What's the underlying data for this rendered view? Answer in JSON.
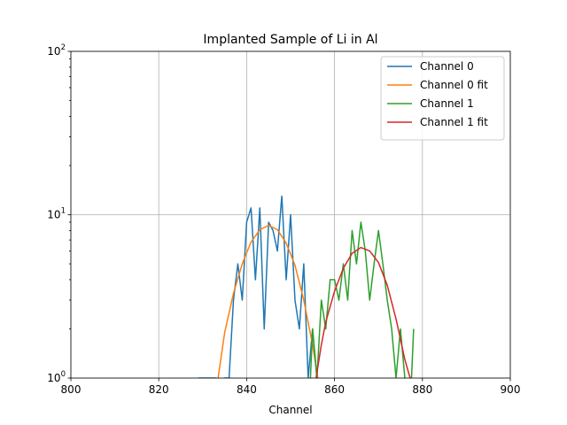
{
  "chart_data": {
    "type": "line",
    "title": "Implanted Sample of Li in Al",
    "xlabel": "Channel",
    "ylabel": "",
    "xlim": [
      800,
      900
    ],
    "ylim": [
      1,
      100
    ],
    "yscale": "log",
    "grid": true,
    "legend_position": "top-right",
    "x_ticks": [
      "800",
      "820",
      "840",
      "860",
      "880",
      "900"
    ],
    "y_ticks": [
      {
        "base": "10",
        "exp": "0",
        "value": 1
      },
      {
        "base": "10",
        "exp": "1",
        "value": 10
      },
      {
        "base": "10",
        "exp": "2",
        "value": 100
      }
    ],
    "series": [
      {
        "name": "Channel 0",
        "color": "#1f77b4",
        "x": [
          829,
          831,
          833,
          834,
          835,
          836,
          837,
          838,
          839,
          840,
          841,
          842,
          843,
          844,
          845,
          846,
          847,
          848,
          849,
          850,
          851,
          852,
          853,
          854,
          855,
          856,
          857
        ],
        "y": [
          1,
          1,
          1,
          0,
          1,
          1,
          3,
          5,
          3,
          9,
          11,
          4,
          11,
          2,
          9,
          8,
          6,
          13,
          4,
          10,
          3,
          2,
          5,
          1,
          2,
          1,
          0
        ]
      },
      {
        "name": "Channel 0 fit",
        "color": "#ff7f0e",
        "x": [
          833.5,
          835,
          837,
          839,
          841,
          843,
          845,
          847,
          849,
          851,
          853,
          855,
          856.2
        ],
        "y": [
          1,
          1.9,
          3.3,
          5.0,
          6.8,
          8.1,
          8.6,
          8.1,
          6.7,
          4.9,
          3.0,
          1.6,
          1
        ]
      },
      {
        "name": "Channel 1",
        "color": "#2ca02c",
        "x": [
          854,
          855,
          856,
          857,
          858,
          859,
          860,
          861,
          862,
          863,
          864,
          865,
          866,
          867,
          868,
          869,
          870,
          871,
          872,
          873,
          874,
          875,
          876,
          877,
          878
        ],
        "y": [
          0,
          2,
          1,
          3,
          2,
          4,
          4,
          3,
          5,
          3,
          8,
          5,
          9,
          6,
          3,
          5,
          8,
          5,
          3,
          2,
          1,
          2,
          1,
          0,
          2
        ]
      },
      {
        "name": "Channel 1 fit",
        "color": "#d62728",
        "x": [
          855.8,
          857,
          858,
          860,
          862,
          864,
          866,
          868,
          870,
          872,
          874,
          876,
          877.2
        ],
        "y": [
          1,
          1.6,
          2.2,
          3.4,
          4.7,
          5.8,
          6.3,
          6.0,
          5.1,
          3.7,
          2.3,
          1.3,
          1
        ]
      }
    ]
  }
}
